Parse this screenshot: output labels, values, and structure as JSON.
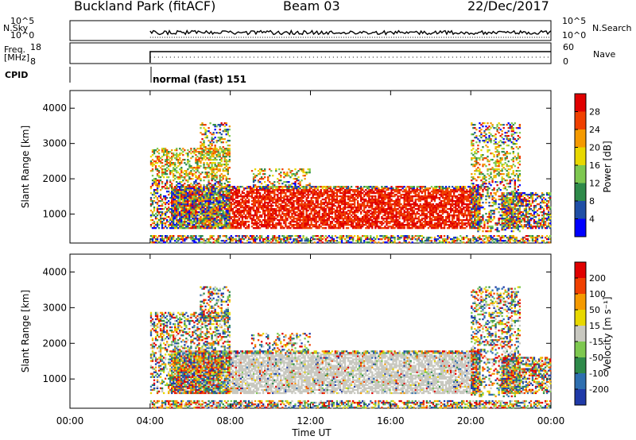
{
  "header": {
    "site": "Buckland Park (fitACF)",
    "beam": "Beam 03",
    "date": "22/Dec/2017"
  },
  "noise_panel": {
    "left_label": "N.Sky",
    "right_label": "N.Search",
    "left_ticks": [
      "10^5",
      "10^0"
    ],
    "right_ticks": [
      "10^5",
      "10^0"
    ]
  },
  "freq_panel": {
    "left_label_1": "Freq.",
    "left_label_2": "[MHz]",
    "right_label": "Nave",
    "left_ticks": [
      "18",
      "8"
    ],
    "right_ticks": [
      "60",
      "0"
    ]
  },
  "cpid": {
    "label": "CPID",
    "mode": "normal (fast) 151"
  },
  "chart_data": [
    {
      "type": "heatmap",
      "name": "power",
      "ylabel": "Slant Range [km]",
      "yticks": [
        "4000",
        "3000",
        "2000",
        "1000"
      ],
      "ylim": [
        180,
        4500
      ],
      "colorbar_label": "Power [dB]",
      "colorbar_ticks": [
        "28",
        "24",
        "20",
        "16",
        "12",
        "8",
        "4"
      ],
      "colors": [
        "#0000ff",
        "#1f4fa6",
        "#2e8a4a",
        "#7ec850",
        "#e8d800",
        "#f59a00",
        "#f04000",
        "#e00000"
      ]
    },
    {
      "type": "heatmap",
      "name": "velocity",
      "ylabel": "Slant Range [km]",
      "yticks": [
        "4000",
        "3000",
        "2000",
        "1000"
      ],
      "ylim": [
        180,
        4500
      ],
      "colorbar_label": "Velocity [m s⁻¹]",
      "colorbar_ticks": [
        "200",
        "100",
        "50",
        "15",
        "-15",
        "-50",
        "-100",
        "-200"
      ],
      "colors": [
        "#1f3aa8",
        "#2e6fb0",
        "#2e8a4a",
        "#7ec850",
        "#c8c8c0",
        "#e8d800",
        "#f59a00",
        "#f04000",
        "#e00000"
      ]
    }
  ],
  "xaxis": {
    "label": "Time UT",
    "ticks": [
      "00:00",
      "04:00",
      "08:00",
      "12:00",
      "16:00",
      "20:00",
      "00:00"
    ]
  }
}
